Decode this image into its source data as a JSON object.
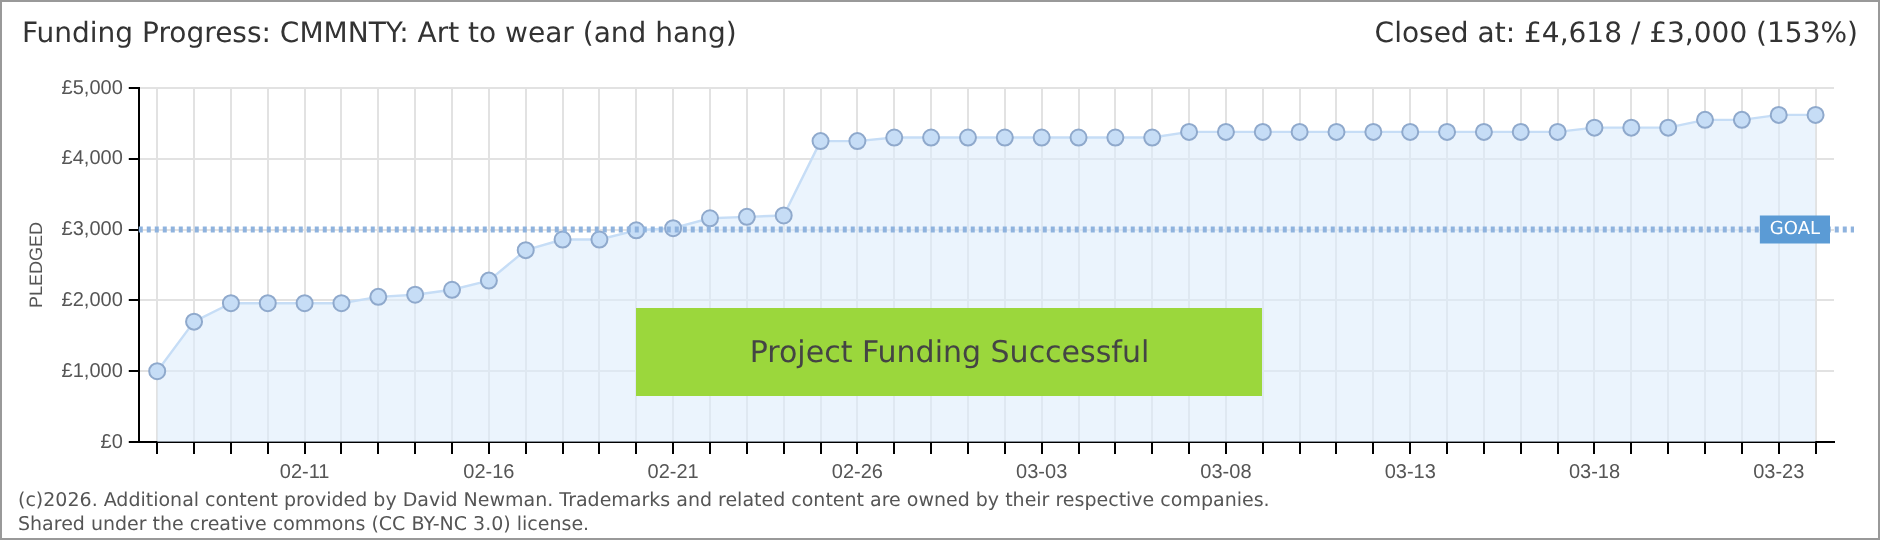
{
  "chart_data": {
    "type": "area",
    "title": "Funding Progress: CMMNTY: Art to wear (and hang)",
    "subtitle": "Closed at:  £4,618 /  £3,000 (153%)",
    "ylabel": "PLEDGED",
    "categories": [
      null,
      null,
      null,
      null,
      "02-11",
      null,
      null,
      null,
      null,
      "02-16",
      null,
      null,
      null,
      null,
      "02-21",
      null,
      null,
      null,
      null,
      "02-26",
      null,
      null,
      null,
      null,
      "03-03",
      null,
      null,
      null,
      null,
      "03-08",
      null,
      null,
      null,
      null,
      "03-13",
      null,
      null,
      null,
      null,
      "03-18",
      null,
      null,
      null,
      null,
      "03-23",
      null
    ],
    "series": [
      {
        "color": "#c6ddf6",
        "values": [
          1000,
          1700,
          1960,
          1960,
          1960,
          1960,
          2050,
          2080,
          2150,
          2280,
          2710,
          2860,
          2860,
          2990,
          3020,
          3160,
          3180,
          3200,
          4250,
          4250,
          4300,
          4300,
          4300,
          4300,
          4300,
          4300,
          4300,
          4300,
          4380,
          4380,
          4380,
          4380,
          4380,
          4380,
          4380,
          4380,
          4380,
          4380,
          4380,
          4440,
          4440,
          4440,
          4550,
          4550,
          4620,
          4620
        ]
      }
    ],
    "ylim": [
      0,
      5000
    ],
    "yticks": [
      {
        "value": 0,
        "label": "£0"
      },
      {
        "value": 1000,
        "label": "£1,000"
      },
      {
        "value": 2000,
        "label": "£2,000"
      },
      {
        "value": 3000,
        "label": "£3,000"
      },
      {
        "value": 4000,
        "label": "£4,000"
      },
      {
        "value": 5000,
        "label": "£5,000"
      }
    ],
    "ref_lines": [
      {
        "axis": "y",
        "value": 3000,
        "label": "GOAL",
        "color": "#8fb3de",
        "line_style": "dotted"
      }
    ],
    "annotations": [
      "Project Funding Successful",
      "(c)2026. Additional content provided by David Newman. Trademarks and related content are owned by their respective companies.",
      "Shared under the creative commons (CC BY-NC 3.0) license."
    ],
    "grid": true,
    "legend": false,
    "marker": "circle",
    "line_style": "solid"
  }
}
